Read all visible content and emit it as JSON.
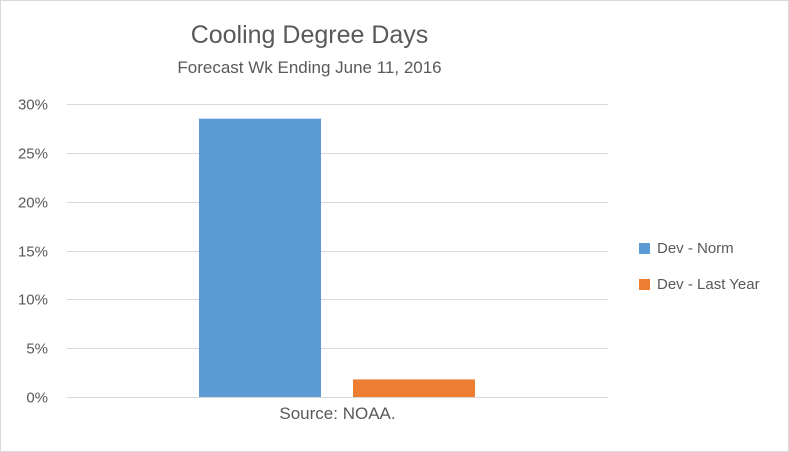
{
  "chart_data": {
    "type": "bar",
    "title": "Cooling Degree Days",
    "subtitle": "Forecast Wk Ending June 11, 2016",
    "categories": [
      "Source: NOAA."
    ],
    "series": [
      {
        "name": "Dev - Norm",
        "values": [
          28.5
        ],
        "color": "#5b9bd5"
      },
      {
        "name": "Dev - Last Year",
        "values": [
          1.8
        ],
        "color": "#ed7d31"
      }
    ],
    "ylim": [
      0,
      30
    ],
    "yticks": [
      "0%",
      "5%",
      "10%",
      "15%",
      "20%",
      "25%",
      "30%"
    ],
    "grid": true,
    "legend": "right",
    "unit": "%"
  }
}
